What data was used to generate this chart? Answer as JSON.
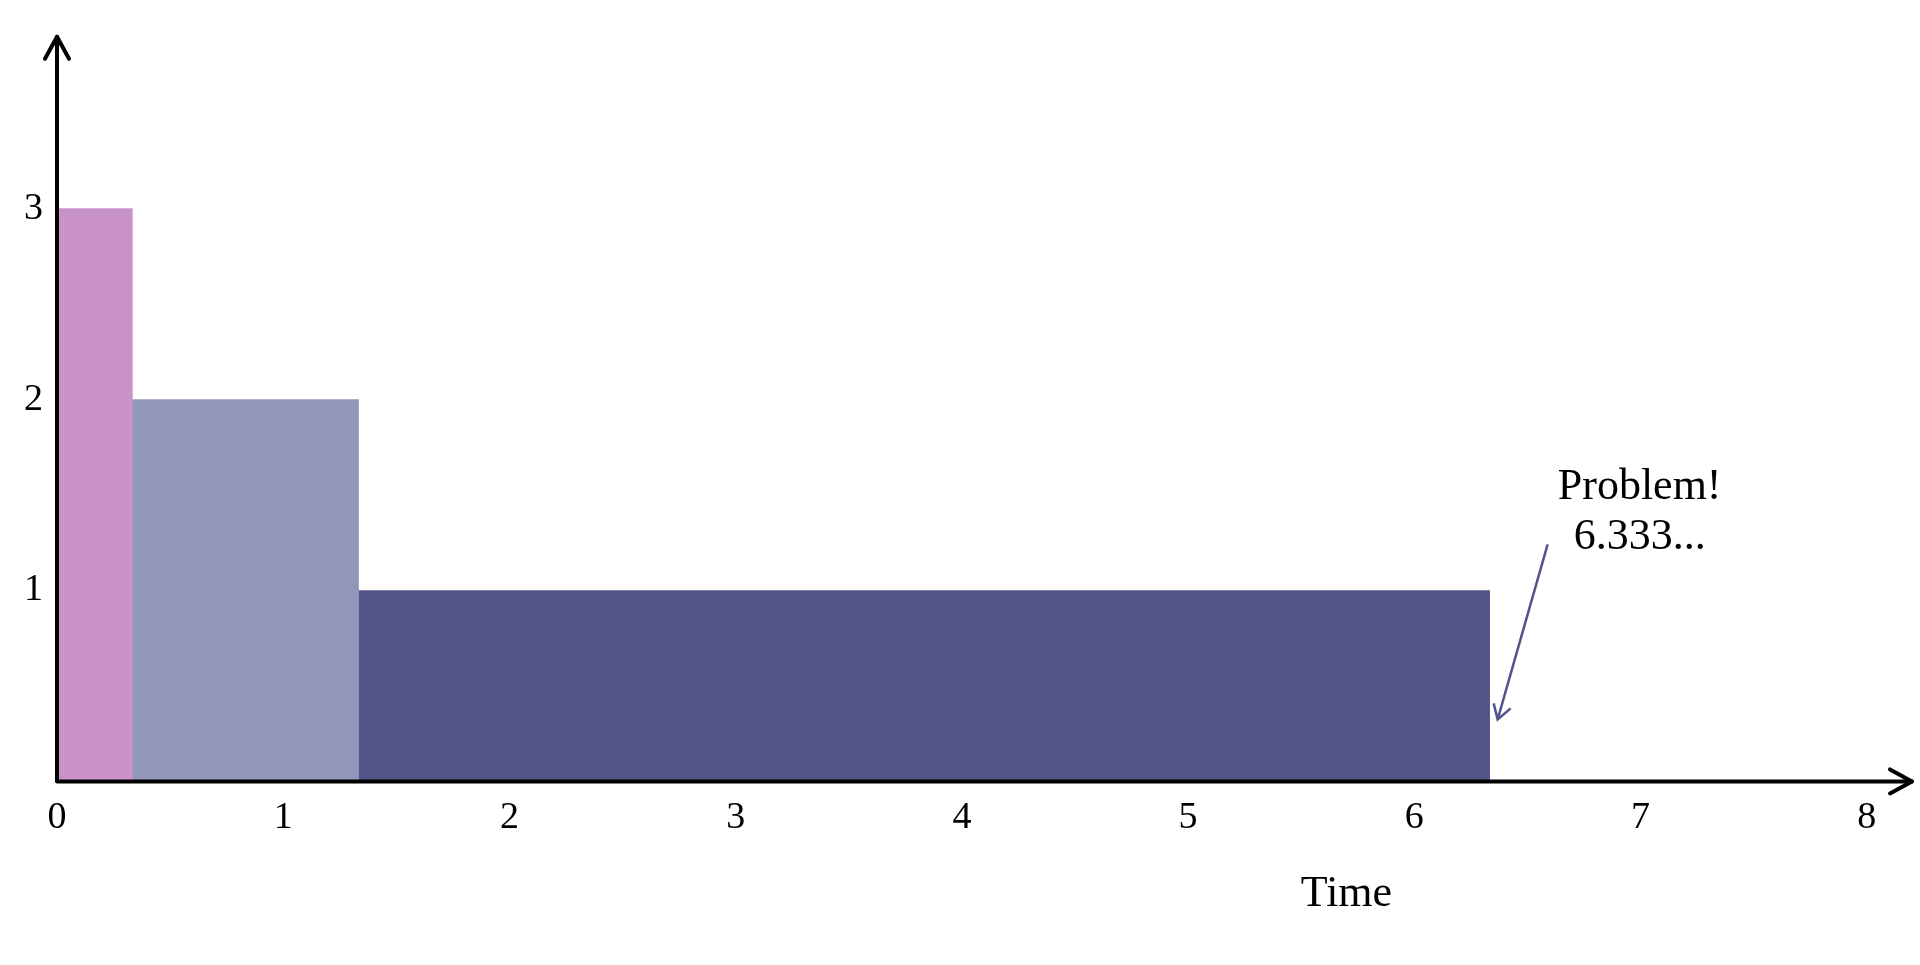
{
  "chart_data": {
    "type": "histogram",
    "xlabel": "Time",
    "bins": [
      0,
      0.333,
      1.333,
      6.333
    ],
    "values": [
      3,
      2,
      1
    ],
    "colors": [
      "#c993c9",
      "#9396bb",
      "#535489"
    ],
    "xlim": [
      0,
      8.2
    ],
    "xticks": [
      0,
      1,
      2,
      3,
      4,
      5,
      6,
      7,
      8
    ],
    "ylim": [
      0,
      3.9
    ],
    "yticks": [
      1,
      2,
      3
    ],
    "grid": false,
    "legend": false,
    "annotations": [
      "Problem!\n6.333..."
    ]
  }
}
